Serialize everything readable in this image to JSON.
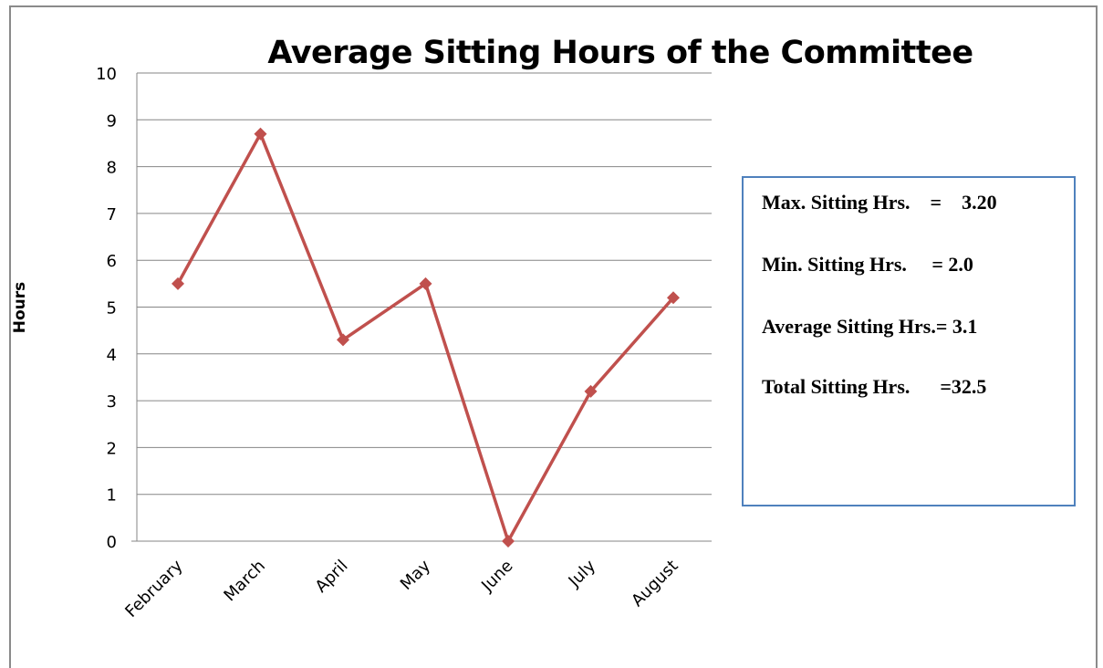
{
  "chart_data": {
    "type": "line",
    "title": "Average Sitting Hours of the Committee",
    "xlabel": "",
    "ylabel": "Hours",
    "categories": [
      "February",
      "March",
      "April",
      "May",
      "June",
      "July",
      "August"
    ],
    "series": [
      {
        "values": [
          5.5,
          8.7,
          4.3,
          5.5,
          0,
          3.2,
          5.2
        ]
      }
    ],
    "ylim": [
      0,
      10
    ],
    "yticks": [
      "0",
      "1",
      "2",
      "3",
      "4",
      "5",
      "6",
      "7",
      "8",
      "9",
      "10"
    ],
    "grid": true,
    "line_color": "#c0504d",
    "grid_color": "#868686"
  },
  "info_box": {
    "lines": [
      "Max. Sitting Hrs.    =    3.20",
      "Min. Sitting Hrs.     = 2.0",
      "Average Sitting Hrs.= 3.1",
      "Total Sitting Hrs.      =32.5"
    ],
    "border_color": "#4f81bd"
  }
}
